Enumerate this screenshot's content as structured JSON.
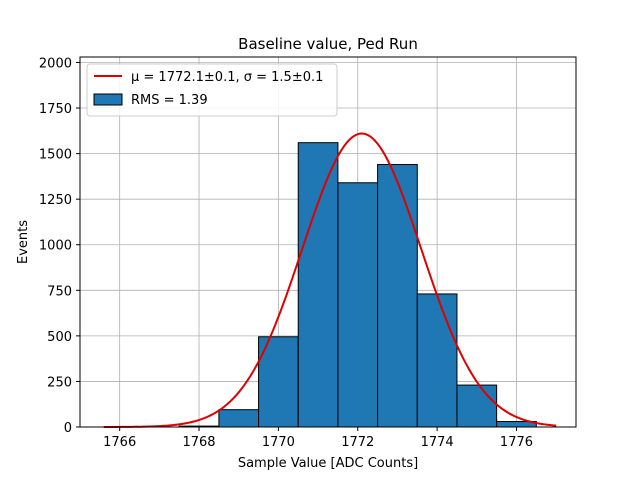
{
  "chart_data": {
    "type": "bar",
    "title": "Baseline value, Ped Run",
    "xlabel": "Sample Value [ADC Counts]",
    "ylabel": "Events",
    "xlim": [
      1765,
      1777.5
    ],
    "ylim": [
      0,
      2030
    ],
    "xticks": [
      1766,
      1768,
      1770,
      1772,
      1774,
      1776
    ],
    "yticks": [
      0,
      250,
      500,
      750,
      1000,
      1250,
      1500,
      1750,
      2000
    ],
    "grid": true,
    "legend_position": "top-left",
    "histogram": {
      "name": "RMS = 1.39",
      "color": "#1f77b4",
      "edge_color": "#000000",
      "bins": [
        {
          "x0": 1765.5,
          "x1": 1766.5,
          "value": 0
        },
        {
          "x0": 1766.5,
          "x1": 1767.5,
          "value": 0
        },
        {
          "x0": 1767.5,
          "x1": 1768.5,
          "value": 5
        },
        {
          "x0": 1768.5,
          "x1": 1769.5,
          "value": 95
        },
        {
          "x0": 1769.5,
          "x1": 1770.5,
          "value": 495
        },
        {
          "x0": 1770.5,
          "x1": 1771.5,
          "value": 1560
        },
        {
          "x0": 1771.5,
          "x1": 1772.5,
          "value": 1340
        },
        {
          "x0": 1772.5,
          "x1": 1773.5,
          "value": 1440
        },
        {
          "x0": 1773.5,
          "x1": 1774.5,
          "value": 730
        },
        {
          "x0": 1774.5,
          "x1": 1775.5,
          "value": 230
        },
        {
          "x0": 1775.5,
          "x1": 1776.5,
          "value": 30
        }
      ]
    },
    "fit": {
      "name": "μ = 1772.1±0.1, σ = 1.5±0.1",
      "color": "#e00000",
      "mu": 1772.1,
      "sigma": 1.5,
      "amplitude": 1610,
      "x_range": [
        1765.6,
        1777.0
      ]
    }
  }
}
